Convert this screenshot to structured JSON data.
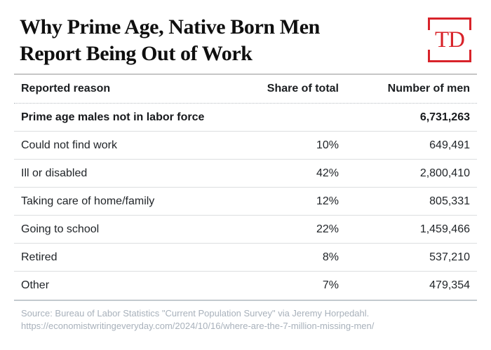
{
  "masthead": {
    "title_line1": "Why Prime Age, Native Born Men",
    "title_line2": "Report Being Out of Work",
    "logo_text": "TD",
    "logo_color": "#d8232a"
  },
  "table": {
    "columns": [
      "Reported reason",
      "Share of total",
      "Number of men"
    ],
    "total_row": {
      "reason": "Prime age males not in labor force",
      "share": "",
      "number": "6,731,263"
    },
    "rows": [
      {
        "reason": "Could not find work",
        "share": "10%",
        "number": "649,491"
      },
      {
        "reason": "Ill or disabled",
        "share": "42%",
        "number": "2,800,410"
      },
      {
        "reason": "Taking care of home/family",
        "share": "12%",
        "number": "805,331"
      },
      {
        "reason": "Going to school",
        "share": "22%",
        "number": "1,459,466"
      },
      {
        "reason": "Retired",
        "share": "8%",
        "number": "537,210"
      },
      {
        "reason": "Other",
        "share": "7%",
        "number": "479,354"
      }
    ]
  },
  "source": {
    "line1": "Source: Bureau of Labor Statistics \"Current Population Survey\" via Jeremy Horpedahl.",
    "line2": "https://economistwritingeveryday.com/2024/10/16/where-are-the-7-million-missing-men/"
  },
  "chart_data": {
    "type": "table",
    "title": "Why Prime Age, Native Born Men Report Being Out of Work",
    "columns": [
      "Reported reason",
      "Share of total",
      "Number of men"
    ],
    "rows": [
      [
        "Prime age males not in labor force",
        null,
        6731263
      ],
      [
        "Could not find work",
        "10%",
        649491
      ],
      [
        "Ill or disabled",
        "42%",
        2800410
      ],
      [
        "Taking care of home/family",
        "12%",
        805331
      ],
      [
        "Going to school",
        "22%",
        1459466
      ],
      [
        "Retired",
        "8%",
        537210
      ],
      [
        "Other",
        "7%",
        479354
      ]
    ],
    "source": "Bureau of Labor Statistics \"Current Population Survey\" via Jeremy Horpedahl",
    "source_url": "https://economistwritingeveryday.com/2024/10/16/where-are-the-7-million-missing-men/"
  }
}
